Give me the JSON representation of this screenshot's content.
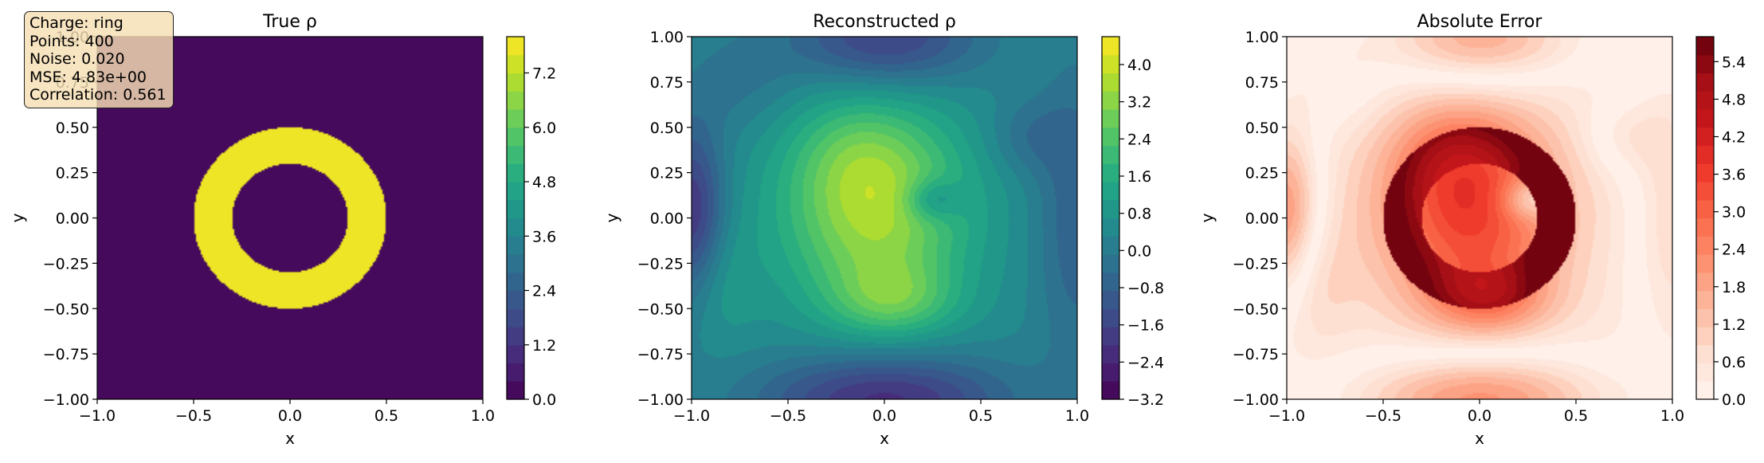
{
  "info_box": {
    "lines": [
      "Charge: ring",
      "Points: 400",
      "Noise: 0.020",
      "MSE: 4.83e+00",
      "Correlation: 0.561"
    ]
  },
  "chart_data": [
    {
      "type": "heatmap",
      "title": "True ρ",
      "xlabel": "x",
      "ylabel": "y",
      "xlim": [
        -1.0,
        1.0
      ],
      "ylim": [
        -1.0,
        1.0
      ],
      "xticks": [
        "−1.0",
        "−0.5",
        "0.0",
        "0.5",
        "1.0"
      ],
      "yticks": [
        "−1.00",
        "−0.75",
        "−0.50",
        "−0.25",
        "0.00",
        "0.25",
        "0.50",
        "0.75",
        "1.00"
      ],
      "colormap": "viridis",
      "colorbar_range": [
        0.0,
        8.0
      ],
      "colorbar_ticks": [
        "0.0",
        "1.2",
        "2.4",
        "3.6",
        "4.8",
        "6.0",
        "7.2"
      ],
      "colorbar_tick_values": [
        0.0,
        1.2,
        2.4,
        3.6,
        4.8,
        6.0,
        7.2
      ],
      "levels": 20,
      "field": {
        "kind": "ring",
        "inner_radius": 0.3,
        "outer_radius": 0.5,
        "value": 8.0
      }
    },
    {
      "type": "heatmap",
      "title": "Reconstructed ρ",
      "xlabel": "x",
      "ylabel": "y",
      "xlim": [
        -1.0,
        1.0
      ],
      "ylim": [
        -1.0,
        1.0
      ],
      "xticks": [
        "−1.0",
        "−0.5",
        "0.0",
        "0.5",
        "1.0"
      ],
      "yticks": [
        "−1.00",
        "−0.75",
        "−0.50",
        "−0.25",
        "0.00",
        "0.25",
        "0.50",
        "0.75",
        "1.00"
      ],
      "colormap": "viridis",
      "colorbar_range": [
        -3.2,
        4.6
      ],
      "colorbar_ticks": [
        "−3.2",
        "−2.4",
        "−1.6",
        "−0.8",
        "0.0",
        "0.8",
        "1.6",
        "2.4",
        "3.2",
        "4.0"
      ],
      "colorbar_tick_values": [
        -3.2,
        -2.4,
        -1.6,
        -0.8,
        0.0,
        0.8,
        1.6,
        2.4,
        3.2,
        4.0
      ],
      "levels": 20,
      "field": {
        "kind": "reconstruction"
      }
    },
    {
      "type": "heatmap",
      "title": "Absolute Error",
      "xlabel": "x",
      "ylabel": "y",
      "xlim": [
        -1.0,
        1.0
      ],
      "ylim": [
        -1.0,
        1.0
      ],
      "xticks": [
        "−1.0",
        "−0.5",
        "0.0",
        "0.5",
        "1.0"
      ],
      "yticks": [
        "−1.00",
        "−0.75",
        "−0.50",
        "−0.25",
        "0.00",
        "0.25",
        "0.50",
        "0.75",
        "1.00"
      ],
      "colormap": "reds",
      "colorbar_range": [
        0.0,
        5.8
      ],
      "colorbar_ticks": [
        "0.0",
        "0.6",
        "1.2",
        "1.8",
        "2.4",
        "3.0",
        "3.6",
        "4.2",
        "4.8",
        "5.4"
      ],
      "colorbar_tick_values": [
        0.0,
        0.6,
        1.2,
        1.8,
        2.4,
        3.0,
        3.6,
        4.2,
        4.8,
        5.4
      ],
      "levels": 20,
      "field": {
        "kind": "abs_error"
      }
    }
  ]
}
